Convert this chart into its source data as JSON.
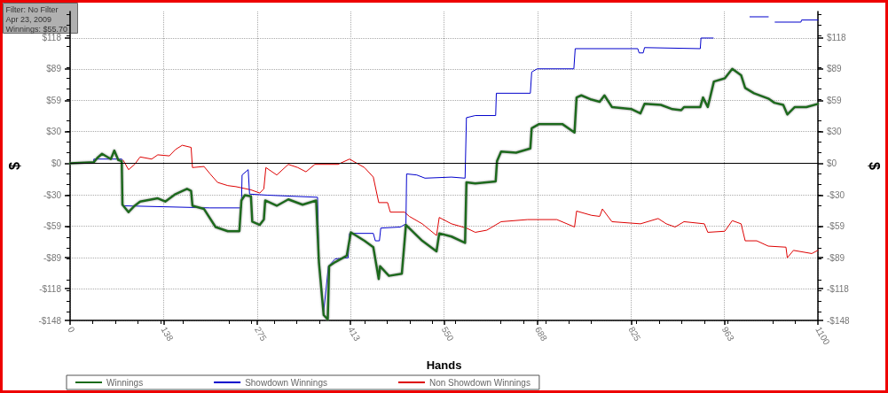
{
  "chart_data": {
    "type": "line",
    "xlabel": "Hands",
    "ylabel": "$",
    "y2label": "$",
    "annotations": [
      "Filter: No Filter",
      "Apr 23, 2009",
      "Winnings: $55.70"
    ],
    "xlim": [
      0,
      1100
    ],
    "xticks": [
      0,
      {
        "value": 137.5,
        "label": "138"
      },
      275,
      {
        "value": 412.5,
        "label": "413"
      },
      550,
      {
        "value": 687.5,
        "label": "688"
      },
      825,
      {
        "value": 962.5,
        "label": "963"
      },
      1100
    ],
    "ylim": [
      -148,
      143
    ],
    "yticks": [
      {
        "value": -148,
        "label": "-$148"
      },
      {
        "value": -118,
        "label": "-$118"
      },
      {
        "value": -89,
        "label": "-$89"
      },
      {
        "value": -59,
        "label": "-$59"
      },
      {
        "value": -30,
        "label": "-$30"
      },
      {
        "value": 0,
        "label": "$0"
      },
      {
        "value": 30,
        "label": "$30"
      },
      {
        "value": 59,
        "label": "$59"
      },
      {
        "value": 89,
        "label": "$89"
      },
      {
        "value": 118,
        "label": "$118"
      }
    ],
    "y2lim": [
      -148,
      143
    ],
    "y2ticks": [
      {
        "value": -148,
        "label": "-$148"
      },
      {
        "value": -118,
        "label": "-$118"
      },
      {
        "value": -89,
        "label": "-$89"
      },
      {
        "value": -59,
        "label": "-$59"
      },
      {
        "value": -30,
        "label": "-$30"
      },
      {
        "value": 0,
        "label": "$0"
      },
      {
        "value": 30,
        "label": "$30"
      },
      {
        "value": 59,
        "label": "$59"
      },
      {
        "value": 89,
        "label": "$89"
      },
      {
        "value": 118,
        "label": "$118"
      }
    ],
    "grid": true,
    "legend": "bottom",
    "marker": "none",
    "line_style": "solid",
    "ref_lines": [
      {
        "axis": "y",
        "value": 0,
        "color": "#000000"
      }
    ],
    "series": [
      {
        "name": "Winnings",
        "color": "#1a6b1a",
        "x": [
          0,
          35,
          40,
          47,
          60,
          65,
          71,
          76,
          77,
          86,
          95,
          103,
          129,
          140,
          155,
          172,
          178,
          180,
          197,
          214,
          232,
          249,
          252,
          257,
          266,
          268,
          279,
          285,
          287,
          304,
          321,
          342,
          362,
          366,
          373,
          379,
          381,
          390,
          407,
          413,
          433,
          446,
          454,
          456,
          469,
          488,
          494,
          518,
          539,
          543,
          561,
          581,
          583,
          596,
          626,
          628,
          634,
          656,
          677,
          679,
          690,
          724,
          742,
          745,
          752,
          767,
          779,
          786,
          797,
          826,
          839,
          845,
          869,
          886,
          899,
          903,
          927,
          931,
          938,
          947,
          963,
          974,
          987,
          993,
          1006,
          1027,
          1036,
          1049,
          1055,
          1066,
          1083,
          1100
        ],
        "values": [
          0,
          1,
          5,
          9,
          4,
          12,
          3,
          2,
          -39,
          -46,
          -40,
          -36,
          -33,
          -36,
          -29,
          -24,
          -26,
          -40,
          -43,
          -60,
          -64,
          -64,
          -35,
          -30,
          -31,
          -55,
          -58,
          -53,
          -35,
          -40,
          -34,
          -39,
          -35,
          -93,
          -143,
          -147,
          -97,
          -93,
          -87,
          -65,
          -73,
          -79,
          -109,
          -97,
          -106,
          -104,
          -58,
          -73,
          -83,
          -66,
          -69,
          -75,
          -18,
          -19,
          -17,
          2,
          11,
          10,
          14,
          33,
          37,
          37,
          29,
          62,
          64,
          60,
          58,
          64,
          53,
          51,
          47,
          56,
          55,
          51,
          50,
          53,
          53,
          62,
          53,
          77,
          80,
          89,
          83,
          71,
          66,
          61,
          57,
          55,
          46,
          53,
          53,
          56
        ]
      },
      {
        "name": "Showdown Winnings",
        "color": "#0000cc",
        "x": [
          0,
          34,
          35,
          76,
          77,
          206,
          252,
          253,
          262,
          264,
          290,
          364,
          366,
          373,
          380,
          390,
          409,
          411,
          446,
          449,
          455,
          457,
          486,
          494,
          495,
          510,
          522,
          561,
          581,
          583,
          596,
          626,
          627,
          677,
          679,
          687,
          741,
          743,
          835,
          837,
          843,
          845,
          927,
          928,
          946,
          947,
          999,
          1000,
          1027,
          1028,
          1036,
          1037,
          1075,
          1076,
          1100
        ],
        "values": [
          0,
          0,
          4,
          4,
          -40,
          -42,
          -42,
          -11,
          -6,
          -29,
          -30,
          -32,
          -90,
          -140,
          -97,
          -90,
          -89,
          -66,
          -66,
          -73,
          -73,
          -61,
          -60,
          -57,
          -10,
          -11,
          -14,
          -13,
          -14,
          43,
          45,
          45,
          66,
          66,
          86,
          89,
          89,
          108,
          108,
          104,
          104,
          109,
          108,
          118,
          118,
          null,
          null,
          138,
          138,
          null,
          null,
          133,
          133,
          135,
          135
        ]
      },
      {
        "name": "Non Showdown Winnings",
        "color": "#dd0000",
        "x": [
          78,
          86,
          95,
          103,
          120,
          129,
          146,
          155,
          165,
          178,
          180,
          197,
          206,
          217,
          232,
          244,
          266,
          279,
          285,
          288,
          304,
          321,
          335,
          347,
          360,
          394,
          411,
          433,
          446,
          454,
          467,
          471,
          492,
          499,
          518,
          539,
          543,
          561,
          583,
          596,
          613,
          634,
          673,
          716,
          742,
          745,
          767,
          779,
          783,
          797,
          839,
          865,
          877,
          890,
          903,
          933,
          938,
          963,
          974,
          987,
          993,
          1010,
          1027,
          1053,
          1055,
          1064,
          1091,
          1100
        ],
        "values": [
          3,
          -6,
          -1,
          6,
          4,
          8,
          7,
          13,
          17,
          15,
          -4,
          -3,
          -10,
          -18,
          -21,
          -22,
          -25,
          -28,
          -24,
          -4,
          -11,
          -1,
          -4,
          -8,
          -1,
          -1,
          4,
          -4,
          -13,
          -37,
          -37,
          -46,
          -46,
          -50,
          -57,
          -68,
          -51,
          -57,
          -61,
          -65,
          -63,
          -55,
          -53,
          -53,
          -60,
          -45,
          -49,
          -50,
          -43,
          -55,
          -57,
          -52,
          -57,
          -60,
          -55,
          -57,
          -65,
          -64,
          -54,
          -57,
          -73,
          -73,
          -78,
          -79,
          -89,
          -82,
          -85,
          -82
        ]
      }
    ]
  }
}
